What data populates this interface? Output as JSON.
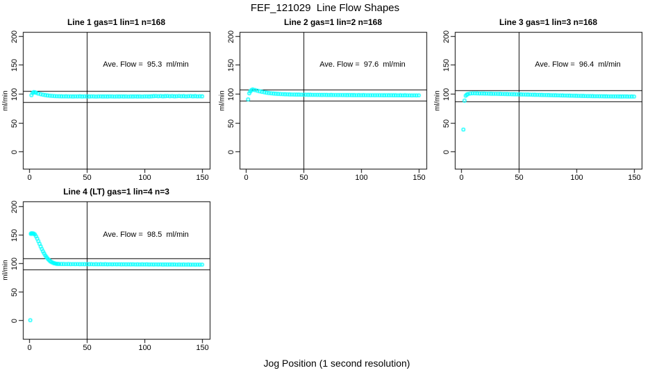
{
  "page": {
    "main_title": "FEF_121029  Line Flow Shapes",
    "bottom_label": "Jog Position (1 second resolution)",
    "point_color": "#00FFFF",
    "line_color": "#000000",
    "background": "#FFFFFF",
    "marker": "open-circle"
  },
  "chart_data": [
    {
      "type": "scatter",
      "title": "Line 1 gas=1 lin=1 n=168",
      "ylabel": "ml/min",
      "annotation": "Ave. Flow =  95.3  ml/min",
      "ave_flow": 95.3,
      "xticks": [
        0,
        50,
        100,
        150
      ],
      "yticks": [
        0,
        50,
        100,
        150,
        200
      ],
      "xlim": [
        -5.4,
        156.6
      ],
      "ylim": [
        -30,
        207
      ],
      "vline_x": 50,
      "hlines": [
        104.8,
        85.8
      ],
      "points": [
        [
          2,
          97.5
        ],
        [
          3,
          101.3
        ],
        [
          4,
          102.8
        ],
        [
          5,
          102.5
        ],
        [
          6,
          101.6
        ],
        [
          8,
          100.2
        ],
        [
          10,
          99.2
        ],
        [
          12,
          98.3
        ],
        [
          14,
          97.6
        ],
        [
          16,
          97.0
        ],
        [
          18,
          96.5
        ],
        [
          20,
          96.2
        ],
        [
          22,
          95.9
        ],
        [
          24,
          95.7
        ],
        [
          26,
          95.6
        ],
        [
          28,
          95.5
        ],
        [
          30,
          95.4
        ],
        [
          32,
          95.5
        ],
        [
          34,
          95.3
        ],
        [
          36,
          95.4
        ],
        [
          38,
          95.2
        ],
        [
          40,
          95.4
        ],
        [
          42,
          95.3
        ],
        [
          44,
          95.5
        ],
        [
          46,
          95.2
        ],
        [
          48,
          95.4
        ],
        [
          50,
          95.3
        ],
        [
          52,
          95.2
        ],
        [
          54,
          95.4
        ],
        [
          56,
          95.3
        ],
        [
          58,
          95.1
        ],
        [
          60,
          95.3
        ],
        [
          62,
          95.4
        ],
        [
          64,
          95.2
        ],
        [
          66,
          95.3
        ],
        [
          68,
          95.2
        ],
        [
          70,
          95.4
        ],
        [
          72,
          95.3
        ],
        [
          74,
          95.1
        ],
        [
          76,
          95.3
        ],
        [
          78,
          95.2
        ],
        [
          80,
          95.4
        ],
        [
          82,
          95.2
        ],
        [
          84,
          95.3
        ],
        [
          86,
          95.1
        ],
        [
          88,
          95.3
        ],
        [
          90,
          95.2
        ],
        [
          92,
          95.4
        ],
        [
          94,
          95.2
        ],
        [
          96,
          95.3
        ],
        [
          98,
          95.1
        ],
        [
          100,
          95.3
        ],
        [
          102,
          95.4
        ],
        [
          104,
          95.2
        ],
        [
          106,
          95.5
        ],
        [
          108,
          95.8
        ],
        [
          110,
          96.0
        ],
        [
          112,
          95.6
        ],
        [
          114,
          95.9
        ],
        [
          116,
          95.5
        ],
        [
          118,
          95.8
        ],
        [
          120,
          96.0
        ],
        [
          122,
          95.6
        ],
        [
          124,
          95.9
        ],
        [
          126,
          95.5
        ],
        [
          128,
          95.7
        ],
        [
          130,
          96.0
        ],
        [
          132,
          95.6
        ],
        [
          134,
          95.8
        ],
        [
          136,
          95.4
        ],
        [
          138,
          95.7
        ],
        [
          140,
          95.9
        ],
        [
          142,
          95.5
        ],
        [
          144,
          95.8
        ],
        [
          146,
          95.4
        ],
        [
          148,
          95.6
        ],
        [
          150,
          95.5
        ]
      ]
    },
    {
      "type": "scatter",
      "title": "Line 2 gas=1 lin=2 n=168",
      "ylabel": "ml/min",
      "annotation": "Ave. Flow =  97.6  ml/min",
      "ave_flow": 97.6,
      "xticks": [
        0,
        50,
        100,
        150
      ],
      "yticks": [
        0,
        50,
        100,
        150,
        200
      ],
      "xlim": [
        -5.4,
        156.6
      ],
      "ylim": [
        -30,
        207
      ],
      "vline_x": 50,
      "hlines": [
        107.4,
        87.8
      ],
      "points": [
        [
          2,
          90.2
        ],
        [
          3,
          100.8
        ],
        [
          4,
          104.2
        ],
        [
          5,
          106.5
        ],
        [
          6,
          107.2
        ],
        [
          8,
          106.3
        ],
        [
          10,
          105.2
        ],
        [
          12,
          104.2
        ],
        [
          14,
          103.3
        ],
        [
          16,
          102.5
        ],
        [
          18,
          101.8
        ],
        [
          20,
          101.2
        ],
        [
          22,
          100.7
        ],
        [
          24,
          100.3
        ],
        [
          26,
          100.0
        ],
        [
          28,
          99.7
        ],
        [
          30,
          99.5
        ],
        [
          32,
          99.3
        ],
        [
          34,
          99.1
        ],
        [
          36,
          99.0
        ],
        [
          38,
          98.8
        ],
        [
          40,
          98.7
        ],
        [
          42,
          98.6
        ],
        [
          44,
          98.5
        ],
        [
          46,
          98.5
        ],
        [
          48,
          98.4
        ],
        [
          50,
          98.3
        ],
        [
          52,
          98.3
        ],
        [
          54,
          98.2
        ],
        [
          56,
          98.2
        ],
        [
          58,
          98.1
        ],
        [
          60,
          98.1
        ],
        [
          62,
          98.0
        ],
        [
          64,
          98.0
        ],
        [
          66,
          97.9
        ],
        [
          68,
          98.0
        ],
        [
          70,
          97.9
        ],
        [
          72,
          97.8
        ],
        [
          74,
          97.9
        ],
        [
          76,
          97.8
        ],
        [
          78,
          97.8
        ],
        [
          80,
          97.7
        ],
        [
          82,
          97.8
        ],
        [
          84,
          97.7
        ],
        [
          86,
          97.7
        ],
        [
          88,
          97.6
        ],
        [
          90,
          97.7
        ],
        [
          92,
          97.6
        ],
        [
          94,
          97.6
        ],
        [
          96,
          97.5
        ],
        [
          98,
          97.6
        ],
        [
          100,
          97.5
        ],
        [
          102,
          97.6
        ],
        [
          104,
          97.5
        ],
        [
          106,
          97.5
        ],
        [
          108,
          97.4
        ],
        [
          110,
          97.5
        ],
        [
          112,
          97.4
        ],
        [
          114,
          97.5
        ],
        [
          116,
          97.4
        ],
        [
          118,
          97.4
        ],
        [
          120,
          97.3
        ],
        [
          122,
          97.4
        ],
        [
          124,
          97.3
        ],
        [
          126,
          97.4
        ],
        [
          128,
          97.3
        ],
        [
          130,
          97.3
        ],
        [
          132,
          97.2
        ],
        [
          134,
          97.3
        ],
        [
          136,
          97.2
        ],
        [
          138,
          97.3
        ],
        [
          140,
          97.2
        ],
        [
          142,
          97.2
        ],
        [
          144,
          97.1
        ],
        [
          146,
          97.2
        ],
        [
          148,
          97.1
        ],
        [
          150,
          97.2
        ]
      ]
    },
    {
      "type": "scatter",
      "title": "Line 3 gas=1 lin=3 n=168",
      "ylabel": "ml/min",
      "annotation": "Ave. Flow =  96.4  ml/min",
      "ave_flow": 96.4,
      "xticks": [
        0,
        50,
        100,
        150
      ],
      "yticks": [
        0,
        50,
        100,
        150,
        200
      ],
      "xlim": [
        -5.4,
        156.6
      ],
      "ylim": [
        -30,
        207
      ],
      "vline_x": 50,
      "hlines": [
        106.0,
        86.8
      ],
      "points": [
        [
          2,
          38.0
        ],
        [
          3,
          88.0
        ],
        [
          4,
          96.5
        ],
        [
          5,
          98.5
        ],
        [
          6,
          99.5
        ],
        [
          8,
          100.5
        ],
        [
          10,
          100.8
        ],
        [
          12,
          100.7
        ],
        [
          14,
          100.6
        ],
        [
          16,
          100.5
        ],
        [
          18,
          100.4
        ],
        [
          20,
          100.3
        ],
        [
          22,
          100.2
        ],
        [
          24,
          100.1
        ],
        [
          26,
          100.0
        ],
        [
          28,
          99.9
        ],
        [
          30,
          99.9
        ],
        [
          32,
          99.8
        ],
        [
          34,
          99.7
        ],
        [
          36,
          99.6
        ],
        [
          38,
          99.5
        ],
        [
          40,
          99.4
        ],
        [
          42,
          99.3
        ],
        [
          44,
          99.2
        ],
        [
          46,
          99.1
        ],
        [
          48,
          99.0
        ],
        [
          50,
          98.9
        ],
        [
          52,
          98.8
        ],
        [
          54,
          98.7
        ],
        [
          56,
          98.6
        ],
        [
          58,
          98.5
        ],
        [
          60,
          98.4
        ],
        [
          62,
          98.3
        ],
        [
          64,
          98.2
        ],
        [
          66,
          98.1
        ],
        [
          68,
          98.0
        ],
        [
          70,
          97.9
        ],
        [
          72,
          97.8
        ],
        [
          74,
          97.7
        ],
        [
          76,
          97.6
        ],
        [
          78,
          97.5
        ],
        [
          80,
          97.4
        ],
        [
          82,
          97.3
        ],
        [
          84,
          97.2
        ],
        [
          86,
          97.1
        ],
        [
          88,
          97.0
        ],
        [
          90,
          96.9
        ],
        [
          92,
          96.8
        ],
        [
          94,
          96.7
        ],
        [
          96,
          96.6
        ],
        [
          98,
          96.5
        ],
        [
          100,
          96.4
        ],
        [
          102,
          96.3
        ],
        [
          104,
          96.2
        ],
        [
          106,
          96.1
        ],
        [
          108,
          96.0
        ],
        [
          110,
          95.9
        ],
        [
          112,
          95.9
        ],
        [
          114,
          95.8
        ],
        [
          116,
          95.7
        ],
        [
          118,
          95.7
        ],
        [
          120,
          95.6
        ],
        [
          122,
          95.6
        ],
        [
          124,
          95.5
        ],
        [
          126,
          95.5
        ],
        [
          128,
          95.4
        ],
        [
          130,
          95.4
        ],
        [
          132,
          95.3
        ],
        [
          134,
          95.3
        ],
        [
          136,
          95.3
        ],
        [
          138,
          95.2
        ],
        [
          140,
          95.2
        ],
        [
          142,
          95.3
        ],
        [
          144,
          95.2
        ],
        [
          146,
          95.1
        ],
        [
          148,
          95.2
        ],
        [
          150,
          95.1
        ]
      ]
    },
    {
      "type": "scatter",
      "title": "Line 4 (LT) gas=1 lin=4 n=3",
      "ylabel": "ml/min",
      "annotation": "Ave. Flow =  98.5  ml/min",
      "ave_flow": 98.5,
      "xticks": [
        0,
        50,
        100,
        150
      ],
      "yticks": [
        0,
        50,
        100,
        150,
        200
      ],
      "xlim": [
        -5.4,
        156.6
      ],
      "ylim": [
        -33,
        209
      ],
      "vline_x": 50,
      "hlines": [
        108.4,
        88.7
      ],
      "points": [
        [
          1,
          0
        ],
        [
          1.5,
          152.0
        ],
        [
          2,
          153.0
        ],
        [
          2.5,
          152.3
        ],
        [
          3,
          152.8
        ],
        [
          3.5,
          152.1
        ],
        [
          4,
          152.4
        ],
        [
          5,
          150.8
        ],
        [
          6,
          147.5
        ],
        [
          7,
          143.5
        ],
        [
          8,
          139.0
        ],
        [
          9,
          134.3
        ],
        [
          10,
          129.6
        ],
        [
          11,
          125.2
        ],
        [
          12,
          121.1
        ],
        [
          13,
          117.4
        ],
        [
          14,
          114.0
        ],
        [
          15,
          111.0
        ],
        [
          16,
          108.4
        ],
        [
          17,
          106.2
        ],
        [
          18,
          104.3
        ],
        [
          19,
          102.8
        ],
        [
          20,
          101.6
        ],
        [
          21,
          100.7
        ],
        [
          22,
          100.0
        ],
        [
          23,
          99.5
        ],
        [
          24,
          99.2
        ],
        [
          25,
          99.0
        ],
        [
          26,
          98.9
        ],
        [
          28,
          98.8
        ],
        [
          30,
          98.8
        ],
        [
          32,
          98.7
        ],
        [
          34,
          98.8
        ],
        [
          36,
          98.6
        ],
        [
          38,
          98.7
        ],
        [
          40,
          98.6
        ],
        [
          42,
          98.7
        ],
        [
          44,
          98.5
        ],
        [
          46,
          98.6
        ],
        [
          48,
          98.5
        ],
        [
          50,
          98.6
        ],
        [
          52,
          98.5
        ],
        [
          54,
          98.6
        ],
        [
          56,
          98.4
        ],
        [
          58,
          98.5
        ],
        [
          60,
          98.4
        ],
        [
          62,
          98.5
        ],
        [
          64,
          98.4
        ],
        [
          66,
          98.5
        ],
        [
          68,
          98.3
        ],
        [
          70,
          98.4
        ],
        [
          72,
          98.3
        ],
        [
          74,
          98.4
        ],
        [
          76,
          98.3
        ],
        [
          78,
          98.4
        ],
        [
          80,
          98.2
        ],
        [
          82,
          98.3
        ],
        [
          84,
          98.2
        ],
        [
          86,
          98.3
        ],
        [
          88,
          98.2
        ],
        [
          90,
          98.3
        ],
        [
          92,
          98.1
        ],
        [
          94,
          98.2
        ],
        [
          96,
          98.1
        ],
        [
          98,
          98.2
        ],
        [
          100,
          98.1
        ],
        [
          102,
          98.2
        ],
        [
          104,
          98.0
        ],
        [
          106,
          98.1
        ],
        [
          108,
          98.0
        ],
        [
          110,
          98.1
        ],
        [
          112,
          98.0
        ],
        [
          114,
          98.1
        ],
        [
          116,
          97.9
        ],
        [
          118,
          98.0
        ],
        [
          120,
          97.9
        ],
        [
          122,
          98.0
        ],
        [
          124,
          97.9
        ],
        [
          126,
          98.0
        ],
        [
          128,
          97.8
        ],
        [
          130,
          97.9
        ],
        [
          132,
          97.8
        ],
        [
          134,
          97.9
        ],
        [
          136,
          97.8
        ],
        [
          138,
          97.9
        ],
        [
          140,
          97.7
        ],
        [
          142,
          97.8
        ],
        [
          144,
          97.7
        ],
        [
          146,
          97.8
        ],
        [
          148,
          97.7
        ],
        [
          150,
          97.8
        ]
      ]
    }
  ]
}
